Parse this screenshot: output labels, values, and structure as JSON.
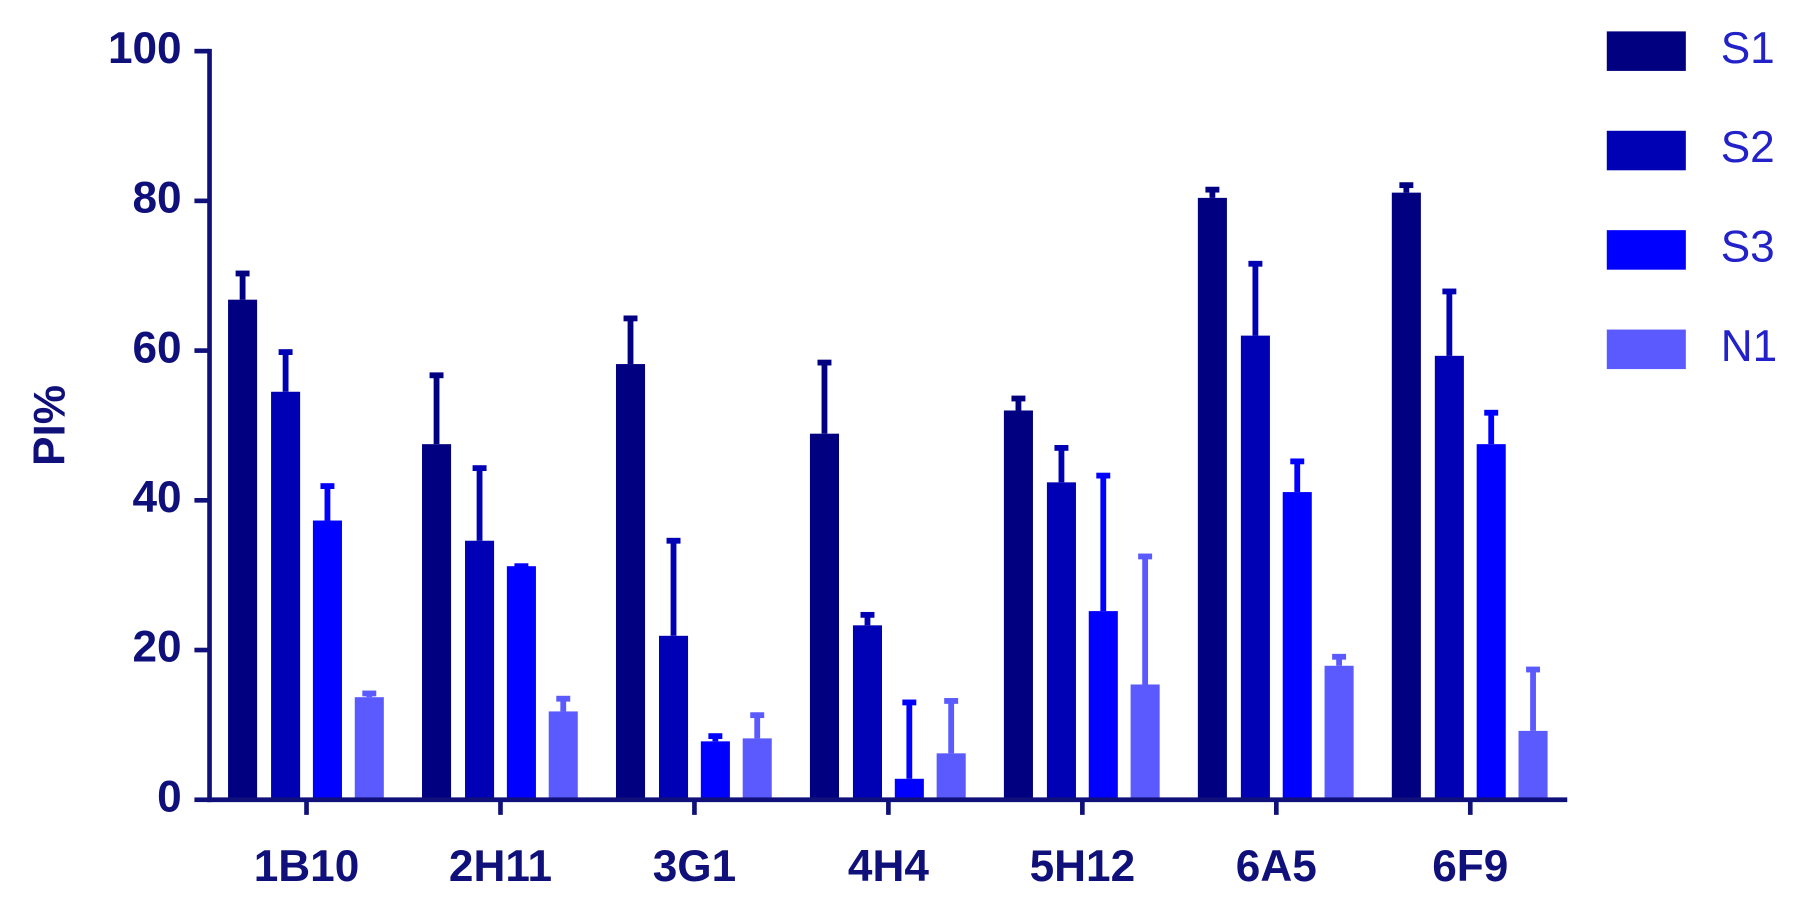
{
  "chart_data": {
    "type": "bar",
    "y_label": "PI%",
    "categories": [
      "1B10",
      "2H11",
      "3G1",
      "4H4",
      "5H12",
      "6A5",
      "6F9"
    ],
    "series": [
      {
        "name": "S1",
        "color": "#000080",
        "values": [
          66.8,
          47.5,
          58.2,
          48.9,
          52.0,
          80.4,
          81.1
        ],
        "errors": [
          3.5,
          9.2,
          6.1,
          9.5,
          1.6,
          1.1,
          1.0
        ]
      },
      {
        "name": "S2",
        "color": "#0000b4",
        "values": [
          54.5,
          34.6,
          21.9,
          23.3,
          42.4,
          62.0,
          59.3
        ],
        "errors": [
          5.3,
          9.7,
          12.7,
          1.4,
          4.6,
          9.6,
          8.6
        ]
      },
      {
        "name": "S3",
        "color": "#0000ff",
        "values": [
          37.3,
          31.2,
          7.8,
          2.8,
          25.2,
          41.1,
          47.5
        ],
        "errors": [
          4.6,
          0,
          0.7,
          10.2,
          18.1,
          4.1,
          4.2
        ]
      },
      {
        "name": "N1",
        "color": "#5a5aff",
        "values": [
          13.7,
          11.8,
          8.2,
          6.2,
          15.4,
          17.9,
          9.2
        ],
        "errors": [
          0.5,
          1.7,
          3.1,
          7.0,
          17.1,
          1.2,
          8.2
        ]
      }
    ],
    "ylim": [
      0,
      100
    ],
    "yticks": [
      0,
      20,
      40,
      60,
      80,
      100
    ],
    "legend": "right"
  }
}
